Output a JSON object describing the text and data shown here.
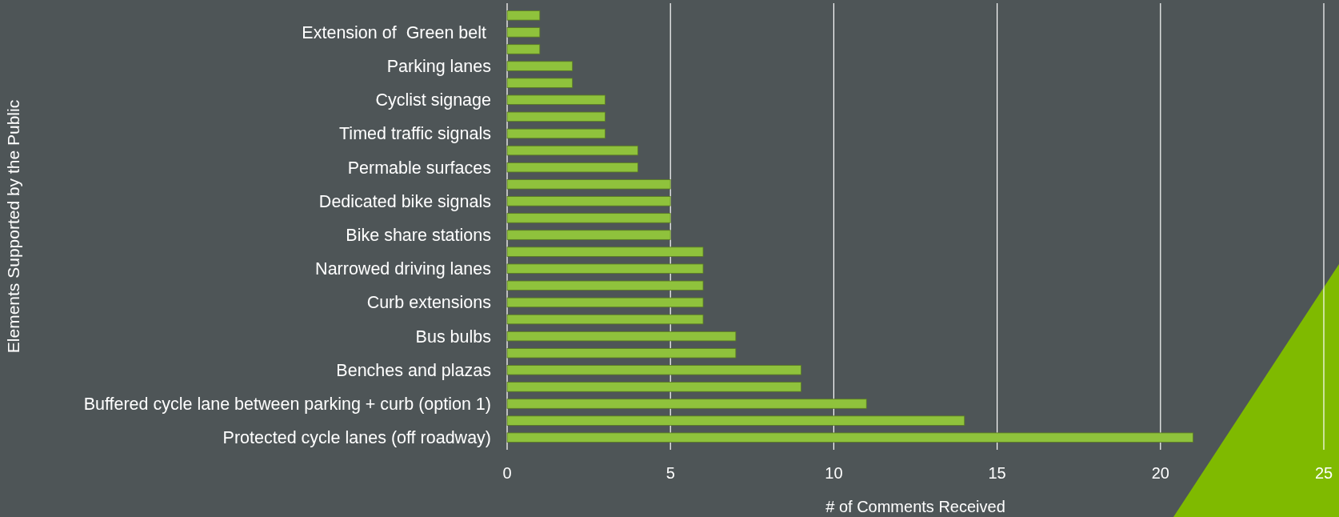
{
  "chart_data": {
    "type": "bar",
    "orientation": "horizontal",
    "xlabel": "# of Comments Received",
    "ylabel": "Elements Supported by the Public",
    "categories": [
      null,
      "Extension of  Green belt ",
      null,
      "Parking lanes",
      null,
      "Cyclist signage",
      null,
      "Timed traffic signals",
      null,
      "Permable surfaces",
      null,
      "Dedicated bike signals",
      null,
      "Bike share stations",
      null,
      "Narrowed driving lanes",
      null,
      "Curb extensions",
      null,
      "Bus bulbs",
      null,
      "Benches and plazas",
      null,
      "Buffered cycle lane between parking + curb (option 1)",
      null,
      "Protected cycle lanes (off roadway)"
    ],
    "values": [
      1,
      1,
      1,
      2,
      2,
      3,
      3,
      3,
      4,
      4,
      5,
      5,
      5,
      5,
      6,
      6,
      6,
      6,
      6,
      7,
      7,
      9,
      9,
      11,
      14,
      21
    ],
    "color": "#8fc23c",
    "xlim": [
      0,
      25
    ],
    "xticks": [
      0,
      5,
      10,
      15,
      20,
      25
    ],
    "grid": "x"
  }
}
